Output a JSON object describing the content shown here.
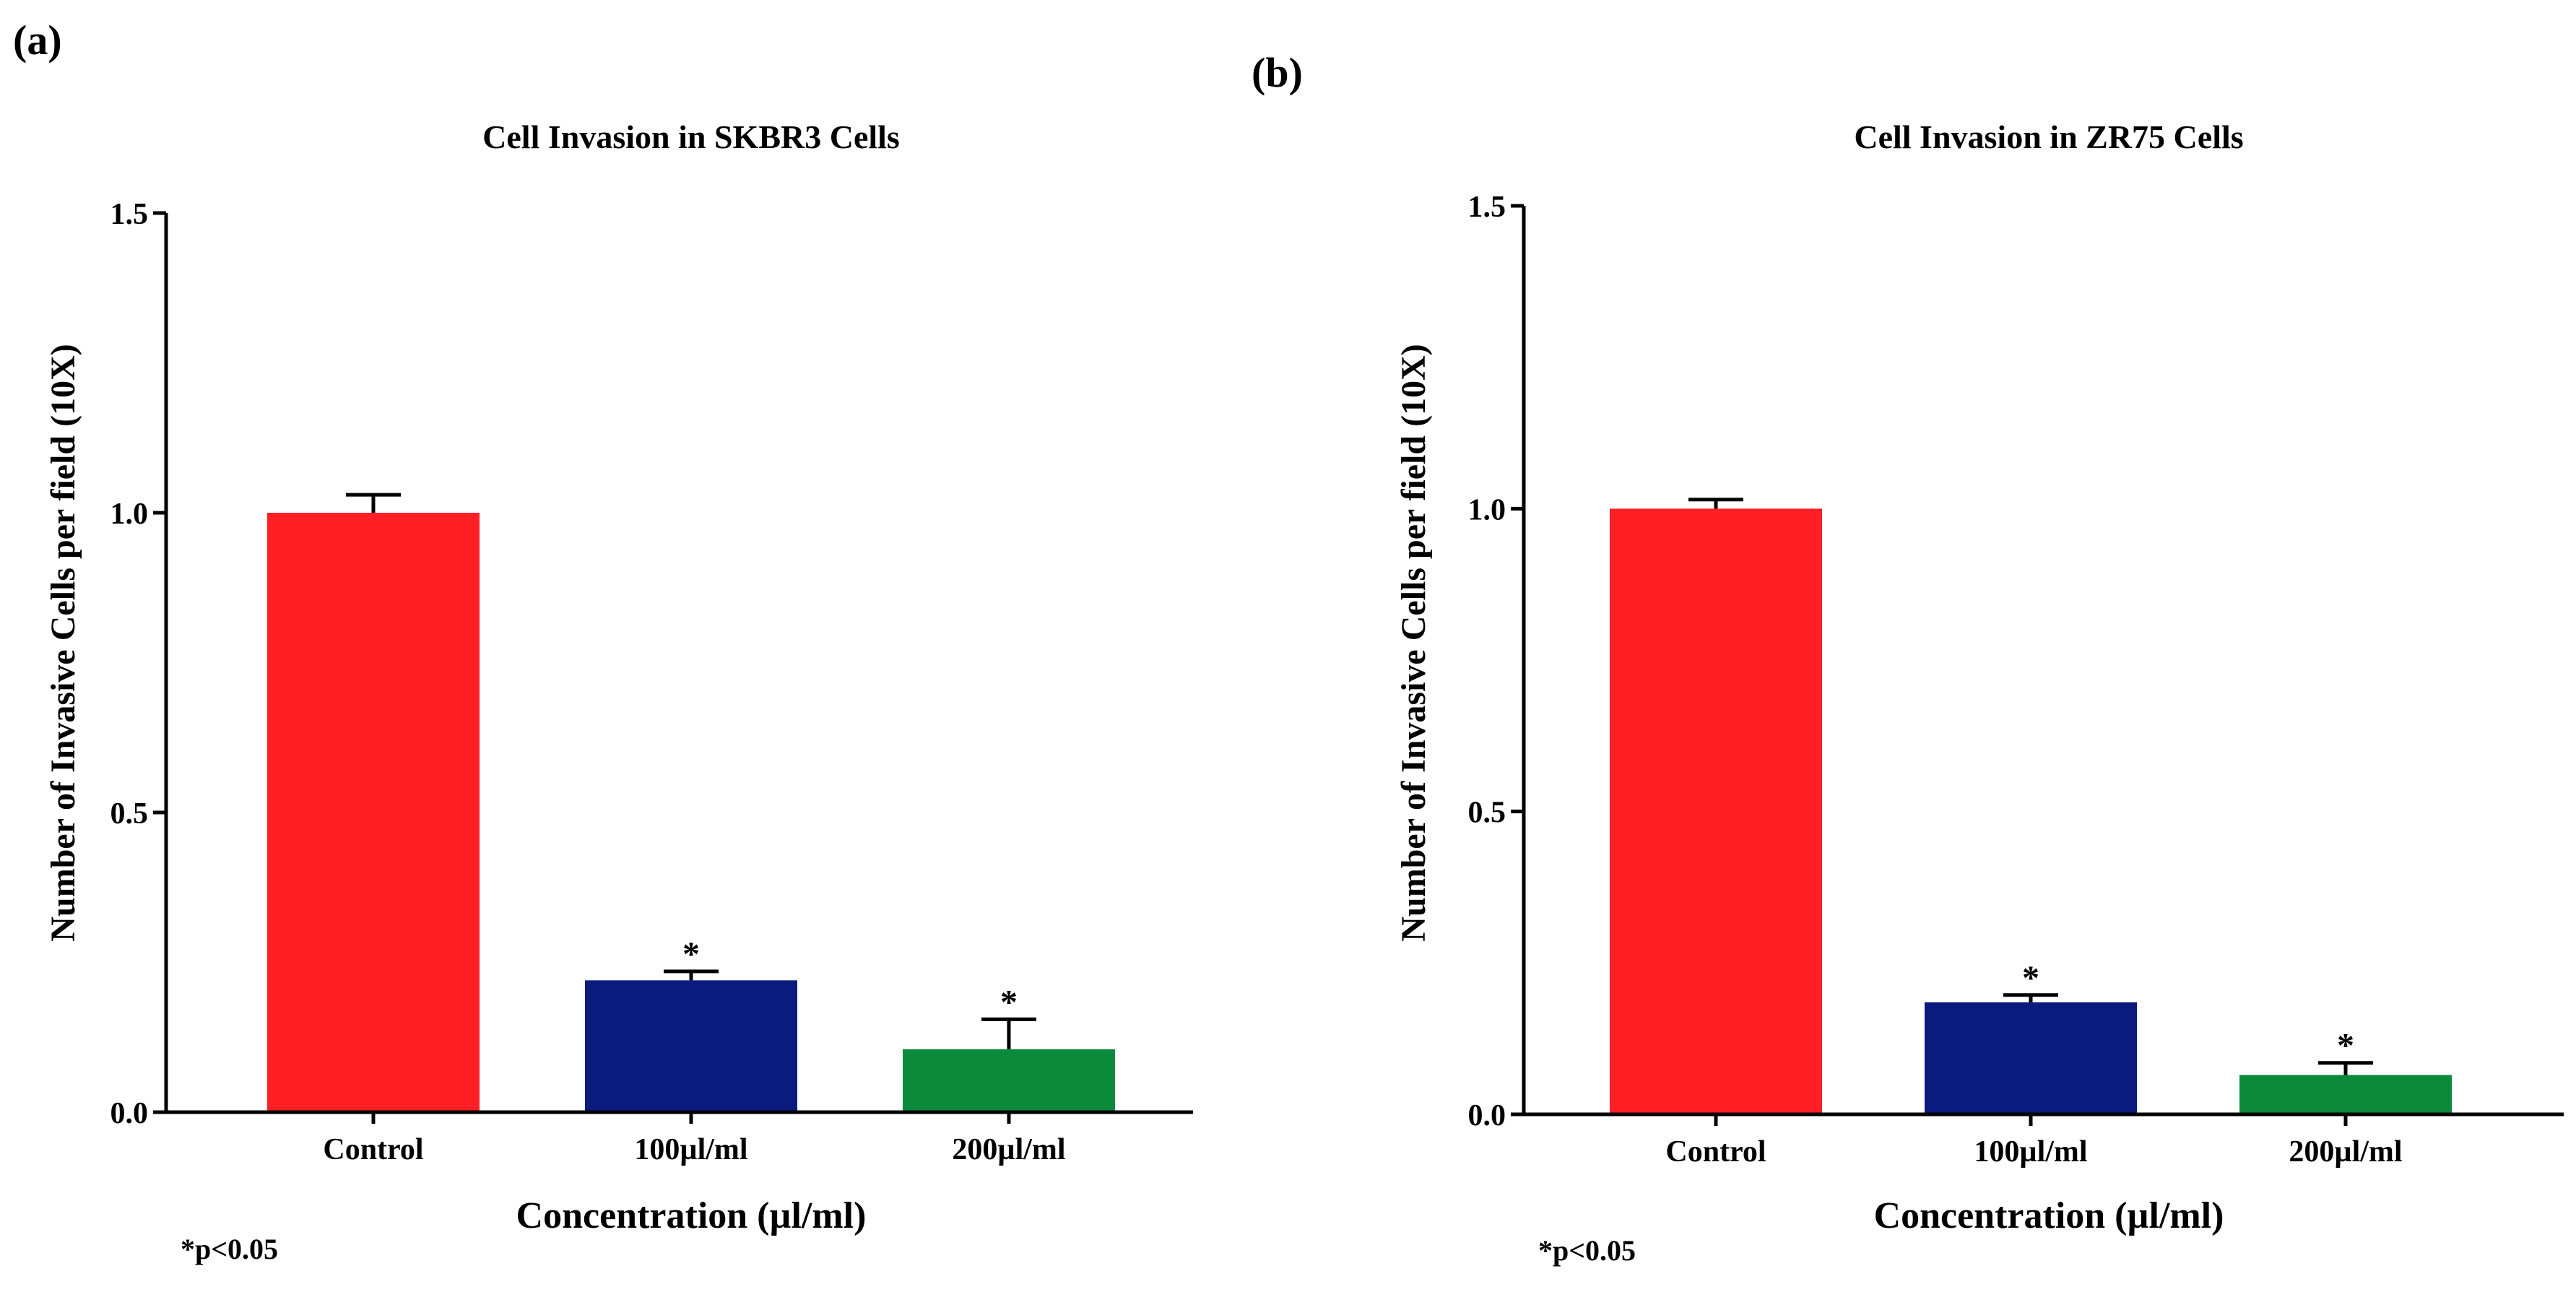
{
  "panels": [
    {
      "label": "(a)",
      "footnote": "*p<0.05",
      "chart_data": {
        "type": "bar",
        "title": "Cell Invasion in SKBR3 Cells",
        "xlabel": "Concentration (µl/ml)",
        "ylabel": "Number of Invasive Cells per field (10X)",
        "ylim": [
          0,
          1.5
        ],
        "yticks": [
          "0.0",
          "0.5",
          "1.0",
          "1.5"
        ],
        "categories": [
          "Control",
          "100µl/ml",
          "200µl/ml"
        ],
        "values": [
          1.0,
          0.22,
          0.105
        ],
        "errors": [
          0.03,
          0.015,
          0.05
        ],
        "significance": [
          "",
          "*",
          "*"
        ],
        "colors": [
          "#ff1f24",
          "#0b1a7d",
          "#0b8a3c"
        ]
      }
    },
    {
      "label": "(b)",
      "footnote": "*p<0.05",
      "chart_data": {
        "type": "bar",
        "title": "Cell Invasion in ZR75 Cells",
        "xlabel": "Concentration (µl/ml)",
        "ylabel": "Number of Invasive Cells per field (10X)",
        "ylim": [
          0,
          1.5
        ],
        "yticks": [
          "0.0",
          "0.5",
          "1.0",
          "1.5"
        ],
        "categories": [
          "Control",
          "100µl/ml",
          "200µl/ml"
        ],
        "values": [
          1.0,
          0.185,
          0.065
        ],
        "errors": [
          0.015,
          0.012,
          0.02
        ],
        "significance": [
          "",
          "*",
          "*"
        ],
        "colors": [
          "#ff1f24",
          "#0b1a7d",
          "#0b8a3c"
        ]
      }
    }
  ]
}
